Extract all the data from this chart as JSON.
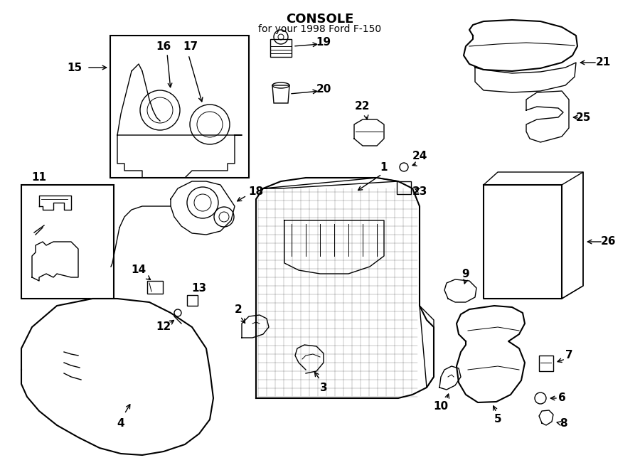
{
  "title": "CONSOLE",
  "subtitle": "for your 1998 Ford F-150",
  "bg_color": "#ffffff",
  "line_color": "#000000",
  "fig_width": 9.0,
  "fig_height": 6.61,
  "dpi": 100
}
